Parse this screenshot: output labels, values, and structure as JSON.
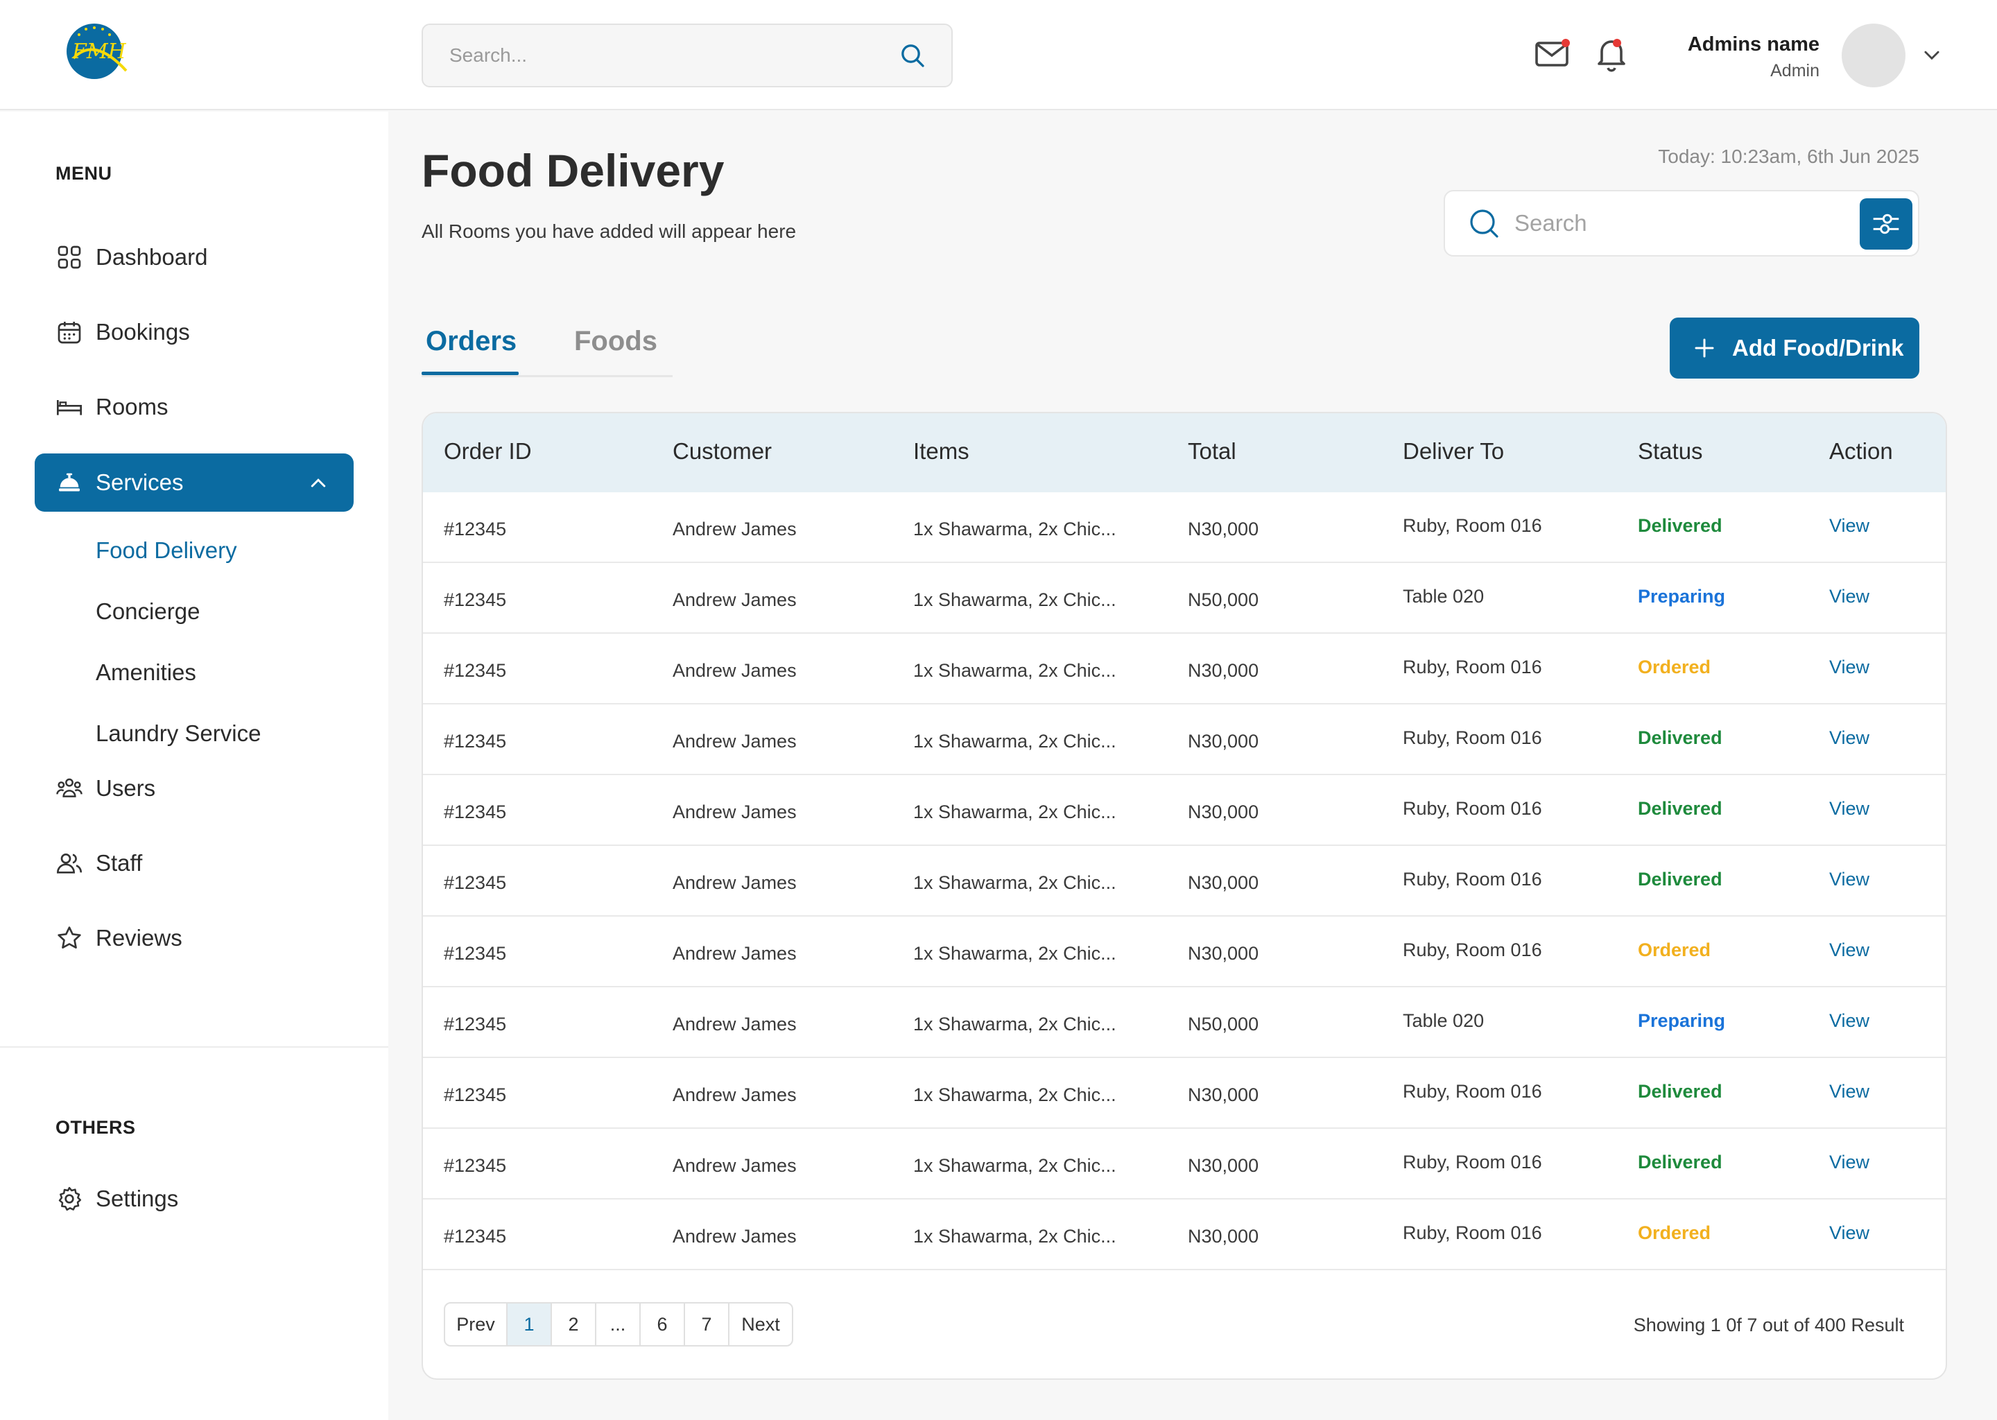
{
  "header": {
    "search_placeholder": "Search...",
    "user_name": "Admins name",
    "user_role": "Admin"
  },
  "sidebar": {
    "menu_label": "MENU",
    "others_label": "OTHERS",
    "items": [
      {
        "label": "Dashboard",
        "icon": "grid-icon"
      },
      {
        "label": "Bookings",
        "icon": "calendar-icon"
      },
      {
        "label": "Rooms",
        "icon": "bed-icon"
      },
      {
        "label": "Services",
        "icon": "service-bell-icon"
      },
      {
        "label": "Users",
        "icon": "users-icon"
      },
      {
        "label": "Staff",
        "icon": "staff-icon"
      },
      {
        "label": "Reviews",
        "icon": "star-icon"
      }
    ],
    "services_sub": [
      "Food Delivery",
      "Concierge",
      "Amenities",
      "Laundry Service"
    ],
    "settings_label": "Settings"
  },
  "main": {
    "title": "Food Delivery",
    "subtitle": "All Rooms you have added will appear here",
    "today": "Today: 10:23am, 6th Jun 2025",
    "search_placeholder": "Search",
    "tabs": [
      "Orders",
      "Foods"
    ],
    "add_button": "Add Food/Drink",
    "columns": [
      "Order ID",
      "Customer",
      "Items",
      "Total",
      "Deliver To",
      "Status",
      "Action"
    ],
    "rows": [
      {
        "id": "#12345",
        "customer": "Andrew James",
        "items": "1x Shawarma, 2x Chic...",
        "total": "N30,000",
        "deliver": "Ruby, Room 016",
        "status": "Delivered",
        "action": "View"
      },
      {
        "id": "#12345",
        "customer": "Andrew James",
        "items": "1x Shawarma, 2x Chic...",
        "total": "N50,000",
        "deliver": "Table 020",
        "status": "Preparing",
        "action": "View"
      },
      {
        "id": "#12345",
        "customer": "Andrew James",
        "items": "1x Shawarma, 2x Chic...",
        "total": "N30,000",
        "deliver": "Ruby, Room 016",
        "status": "Ordered",
        "action": "View"
      },
      {
        "id": "#12345",
        "customer": "Andrew James",
        "items": "1x Shawarma, 2x Chic...",
        "total": "N30,000",
        "deliver": "Ruby, Room 016",
        "status": "Delivered",
        "action": "View"
      },
      {
        "id": "#12345",
        "customer": "Andrew James",
        "items": "1x Shawarma, 2x Chic...",
        "total": "N30,000",
        "deliver": "Ruby, Room 016",
        "status": "Delivered",
        "action": "View"
      },
      {
        "id": "#12345",
        "customer": "Andrew James",
        "items": "1x Shawarma, 2x Chic...",
        "total": "N30,000",
        "deliver": "Ruby, Room 016",
        "status": "Delivered",
        "action": "View"
      },
      {
        "id": "#12345",
        "customer": "Andrew James",
        "items": "1x Shawarma, 2x Chic...",
        "total": "N30,000",
        "deliver": "Ruby, Room 016",
        "status": "Ordered",
        "action": "View"
      },
      {
        "id": "#12345",
        "customer": "Andrew James",
        "items": "1x Shawarma, 2x Chic...",
        "total": "N50,000",
        "deliver": "Table 020",
        "status": "Preparing",
        "action": "View"
      },
      {
        "id": "#12345",
        "customer": "Andrew James",
        "items": "1x Shawarma, 2x Chic...",
        "total": "N30,000",
        "deliver": "Ruby, Room 016",
        "status": "Delivered",
        "action": "View"
      },
      {
        "id": "#12345",
        "customer": "Andrew James",
        "items": "1x Shawarma, 2x Chic...",
        "total": "N30,000",
        "deliver": "Ruby, Room 016",
        "status": "Delivered",
        "action": "View"
      },
      {
        "id": "#12345",
        "customer": "Andrew James",
        "items": "1x Shawarma, 2x Chic...",
        "total": "N30,000",
        "deliver": "Ruby, Room 016",
        "status": "Ordered",
        "action": "View"
      }
    ],
    "pagination": [
      "Prev",
      "1",
      "2",
      "...",
      "6",
      "7",
      "Next"
    ],
    "current_page": "1",
    "result_text": "Showing 1 0f 7 out of 400 Result"
  },
  "colors": {
    "primary": "#0b6ba1",
    "delivered": "#1e8a3c",
    "preparing": "#1a73d9",
    "ordered": "#f2b01e",
    "notification_dot": "#e53935"
  }
}
